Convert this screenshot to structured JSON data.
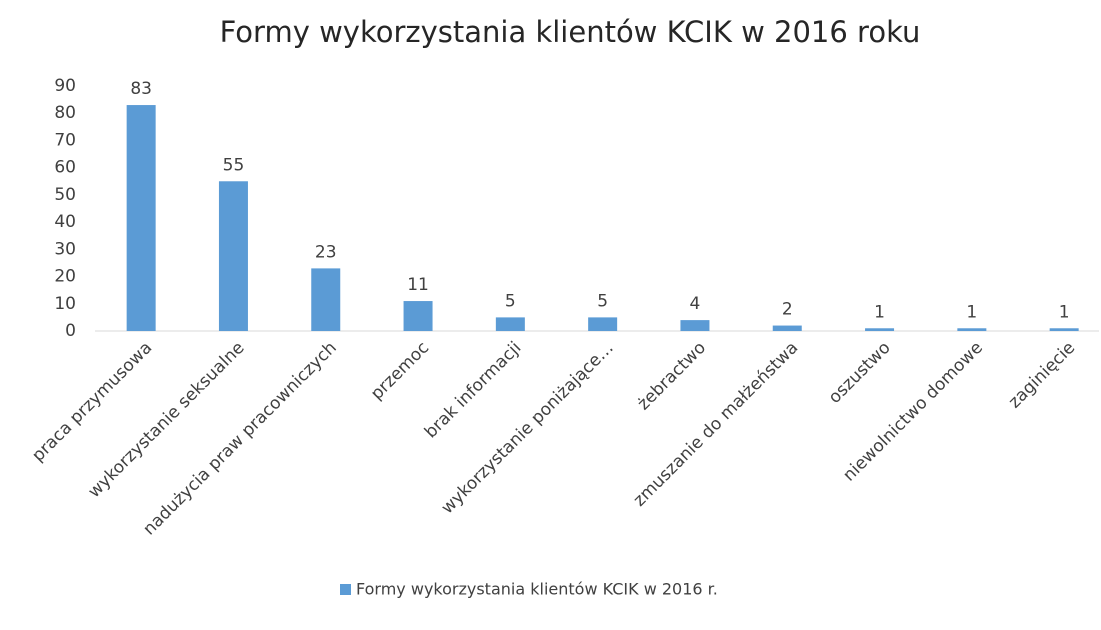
{
  "chart_data": {
    "type": "bar",
    "title": "Formy wykorzystania klientów KCIK w 2016 roku",
    "categories": [
      "praca przymusowa",
      "wykorzystanie seksualne",
      "nadużycia praw pracowniczych",
      "przemoc",
      "brak informacji",
      "wykorzystanie poniżające…",
      "żebractwo",
      "zmuszanie do małżeństwa",
      "oszustwo",
      "niewolnictwo domowe",
      "zaginięcie"
    ],
    "series": [
      {
        "name": "Formy wykorzystania klientów KCIK w 2016 r.",
        "color": "#5b9bd5",
        "values": [
          83,
          55,
          23,
          11,
          5,
          5,
          4,
          2,
          1,
          1,
          1
        ]
      }
    ],
    "ylim": [
      0,
      90
    ],
    "yticks": [
      0,
      10,
      20,
      30,
      40,
      50,
      60,
      70,
      80,
      90
    ],
    "grid": false,
    "legend": "bottom"
  }
}
